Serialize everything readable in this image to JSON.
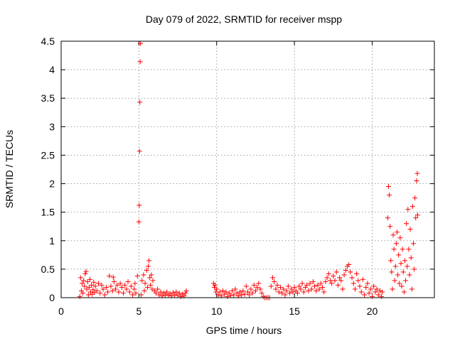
{
  "chart_data": {
    "type": "scatter",
    "title": "Day 079 of 2022, SRMTID for receiver mspp",
    "xlabel": "GPS time / hours",
    "ylabel": "SRMTID / TECUs",
    "xlim": [
      0,
      24
    ],
    "ylim": [
      0,
      4.5
    ],
    "xticks": [
      0,
      5,
      10,
      15,
      20
    ],
    "xtick_labels": [
      "0",
      "5",
      "10",
      "15",
      "20"
    ],
    "yticks": [
      0,
      0.5,
      1,
      1.5,
      2,
      2.5,
      3,
      3.5,
      4,
      4.5
    ],
    "ytick_labels": [
      "0",
      "0.5",
      "1",
      "1.5",
      "2",
      "2.5",
      "3",
      "3.5",
      "4",
      "4.5"
    ],
    "grid": true,
    "marker": "+",
    "color": "#ff0000",
    "series": [
      {
        "name": "SRMTID",
        "points": [
          [
            1.2,
            0.02
          ],
          [
            1.25,
            0.35
          ],
          [
            1.3,
            0.12
          ],
          [
            1.35,
            0.25
          ],
          [
            1.4,
            0.08
          ],
          [
            1.45,
            0.3
          ],
          [
            1.5,
            0.2
          ],
          [
            1.55,
            0.42
          ],
          [
            1.6,
            0.46
          ],
          [
            1.65,
            0.15
          ],
          [
            1.7,
            0.28
          ],
          [
            1.75,
            0.05
          ],
          [
            1.8,
            0.18
          ],
          [
            1.85,
            0.32
          ],
          [
            1.9,
            0.1
          ],
          [
            1.95,
            0.22
          ],
          [
            2.0,
            0.06
          ],
          [
            2.05,
            0.14
          ],
          [
            2.1,
            0.27
          ],
          [
            2.15,
            0.09
          ],
          [
            2.2,
            0.2
          ],
          [
            2.3,
            0.12
          ],
          [
            2.4,
            0.25
          ],
          [
            2.5,
            0.08
          ],
          [
            2.6,
            0.22
          ],
          [
            2.7,
            0.15
          ],
          [
            2.8,
            0.05
          ],
          [
            2.9,
            0.18
          ],
          [
            3.0,
            0.1
          ],
          [
            3.1,
            0.38
          ],
          [
            3.2,
            0.2
          ],
          [
            3.3,
            0.12
          ],
          [
            3.35,
            0.36
          ],
          [
            3.4,
            0.28
          ],
          [
            3.5,
            0.15
          ],
          [
            3.6,
            0.22
          ],
          [
            3.7,
            0.1
          ],
          [
            3.8,
            0.25
          ],
          [
            3.9,
            0.18
          ],
          [
            4.0,
            0.08
          ],
          [
            4.1,
            0.22
          ],
          [
            4.2,
            0.15
          ],
          [
            4.3,
            0.28
          ],
          [
            4.4,
            0.1
          ],
          [
            4.5,
            0.2
          ],
          [
            4.6,
            0.05
          ],
          [
            4.7,
            0.15
          ],
          [
            4.75,
            0.25
          ],
          [
            4.8,
            0.08
          ],
          [
            4.9,
            0.38
          ],
          [
            5.0,
            1.33
          ],
          [
            5.02,
            1.62
          ],
          [
            5.04,
            2.57
          ],
          [
            5.06,
            3.43
          ],
          [
            5.08,
            4.14
          ],
          [
            5.1,
            4.46
          ],
          [
            5.15,
            0.05
          ],
          [
            5.2,
            0.3
          ],
          [
            5.3,
            0.4
          ],
          [
            5.35,
            0.12
          ],
          [
            5.4,
            0.25
          ],
          [
            5.5,
            0.48
          ],
          [
            5.55,
            0.18
          ],
          [
            5.6,
            0.55
          ],
          [
            5.65,
            0.65
          ],
          [
            5.7,
            0.35
          ],
          [
            5.75,
            0.22
          ],
          [
            5.8,
            0.4
          ],
          [
            5.85,
            0.15
          ],
          [
            5.9,
            0.3
          ],
          [
            6.0,
            0.12
          ],
          [
            6.1,
            0.08
          ],
          [
            6.2,
            0.15
          ],
          [
            6.3,
            0.05
          ],
          [
            6.4,
            0.1
          ],
          [
            6.5,
            0.03
          ],
          [
            6.6,
            0.08
          ],
          [
            6.7,
            0.05
          ],
          [
            6.8,
            0.1
          ],
          [
            6.9,
            0.04
          ],
          [
            7.0,
            0.07
          ],
          [
            7.1,
            0.03
          ],
          [
            7.2,
            0.09
          ],
          [
            7.3,
            0.05
          ],
          [
            7.4,
            0.1
          ],
          [
            7.5,
            0.04
          ],
          [
            7.6,
            0.08
          ],
          [
            7.7,
            0.02
          ],
          [
            7.8,
            0.06
          ],
          [
            7.9,
            0.03
          ],
          [
            8.0,
            0.08
          ],
          [
            8.05,
            0.12
          ],
          [
            9.8,
            0.25
          ],
          [
            9.85,
            0.18
          ],
          [
            9.9,
            0.22
          ],
          [
            9.95,
            0.1
          ],
          [
            10.0,
            0.15
          ],
          [
            10.1,
            0.05
          ],
          [
            10.2,
            0.1
          ],
          [
            10.3,
            0.03
          ],
          [
            10.4,
            0.12
          ],
          [
            10.5,
            0.06
          ],
          [
            10.6,
            0.1
          ],
          [
            10.7,
            0.02
          ],
          [
            10.8,
            0.08
          ],
          [
            10.9,
            0.04
          ],
          [
            11.0,
            0.12
          ],
          [
            11.1,
            0.05
          ],
          [
            11.2,
            0.15
          ],
          [
            11.3,
            0.08
          ],
          [
            11.4,
            0.03
          ],
          [
            11.5,
            0.1
          ],
          [
            11.6,
            0.05
          ],
          [
            11.7,
            0.12
          ],
          [
            11.8,
            0.06
          ],
          [
            11.9,
            0.2
          ],
          [
            12.0,
            0.1
          ],
          [
            12.1,
            0.05
          ],
          [
            12.2,
            0.15
          ],
          [
            12.3,
            0.08
          ],
          [
            12.4,
            0.22
          ],
          [
            12.5,
            0.12
          ],
          [
            12.6,
            0.18
          ],
          [
            12.7,
            0.25
          ],
          [
            12.8,
            0.15
          ],
          [
            12.9,
            0.08
          ],
          [
            13.0,
            0.02
          ],
          [
            13.1,
            0.0
          ],
          [
            13.2,
            0.0
          ],
          [
            13.3,
            0.0
          ],
          [
            13.4,
            0.0
          ],
          [
            13.5,
            0.2
          ],
          [
            13.6,
            0.35
          ],
          [
            13.7,
            0.28
          ],
          [
            13.8,
            0.15
          ],
          [
            13.9,
            0.22
          ],
          [
            14.0,
            0.1
          ],
          [
            14.1,
            0.18
          ],
          [
            14.2,
            0.08
          ],
          [
            14.3,
            0.15
          ],
          [
            14.4,
            0.05
          ],
          [
            14.5,
            0.12
          ],
          [
            14.6,
            0.2
          ],
          [
            14.7,
            0.08
          ],
          [
            14.8,
            0.15
          ],
          [
            14.9,
            0.1
          ],
          [
            15.0,
            0.18
          ],
          [
            15.1,
            0.12
          ],
          [
            15.2,
            0.08
          ],
          [
            15.3,
            0.2
          ],
          [
            15.4,
            0.15
          ],
          [
            15.5,
            0.25
          ],
          [
            15.6,
            0.1
          ],
          [
            15.7,
            0.18
          ],
          [
            15.8,
            0.22
          ],
          [
            15.9,
            0.12
          ],
          [
            16.0,
            0.25
          ],
          [
            16.1,
            0.15
          ],
          [
            16.2,
            0.28
          ],
          [
            16.3,
            0.2
          ],
          [
            16.4,
            0.12
          ],
          [
            16.5,
            0.22
          ],
          [
            16.6,
            0.15
          ],
          [
            16.7,
            0.25
          ],
          [
            16.8,
            0.18
          ],
          [
            16.9,
            0.1
          ],
          [
            17.0,
            0.28
          ],
          [
            17.1,
            0.35
          ],
          [
            17.2,
            0.42
          ],
          [
            17.3,
            0.3
          ],
          [
            17.4,
            0.25
          ],
          [
            17.5,
            0.38
          ],
          [
            17.6,
            0.3
          ],
          [
            17.7,
            0.45
          ],
          [
            17.8,
            0.22
          ],
          [
            17.9,
            0.35
          ],
          [
            18.0,
            0.3
          ],
          [
            18.1,
            0.15
          ],
          [
            18.2,
            0.4
          ],
          [
            18.3,
            0.48
          ],
          [
            18.4,
            0.55
          ],
          [
            18.5,
            0.58
          ],
          [
            18.6,
            0.45
          ],
          [
            18.7,
            0.35
          ],
          [
            18.8,
            0.25
          ],
          [
            18.9,
            0.15
          ],
          [
            19.0,
            0.42
          ],
          [
            19.1,
            0.3
          ],
          [
            19.2,
            0.2
          ],
          [
            19.3,
            0.1
          ],
          [
            19.4,
            0.32
          ],
          [
            19.5,
            0.05
          ],
          [
            19.6,
            0.18
          ],
          [
            19.7,
            0.25
          ],
          [
            19.8,
            0.08
          ],
          [
            19.9,
            0.15
          ],
          [
            20.0,
            0.02
          ],
          [
            20.1,
            0.2
          ],
          [
            20.2,
            0.1
          ],
          [
            20.3,
            0.15
          ],
          [
            20.4,
            0.05
          ],
          [
            20.5,
            0.12
          ],
          [
            20.6,
            0.02
          ],
          [
            20.65,
            0.1
          ],
          [
            21.0,
            1.4
          ],
          [
            21.05,
            1.95
          ],
          [
            21.1,
            1.8
          ],
          [
            21.15,
            1.25
          ],
          [
            21.2,
            0.65
          ],
          [
            21.25,
            0.45
          ],
          [
            21.3,
            0.15
          ],
          [
            21.35,
            1.1
          ],
          [
            21.4,
            0.85
          ],
          [
            21.45,
            0.3
          ],
          [
            21.5,
            0.55
          ],
          [
            21.55,
            0.95
          ],
          [
            21.6,
            1.15
          ],
          [
            21.65,
            0.4
          ],
          [
            21.7,
            0.75
          ],
          [
            21.75,
            0.25
          ],
          [
            21.8,
            1.05
          ],
          [
            21.85,
            0.6
          ],
          [
            21.9,
            0.2
          ],
          [
            21.95,
            0.85
          ],
          [
            22.0,
            0.45
          ],
          [
            22.05,
            0.1
          ],
          [
            22.1,
            0.65
          ],
          [
            22.15,
            0.3
          ],
          [
            22.2,
            1.3
          ],
          [
            22.25,
            0.55
          ],
          [
            22.3,
            1.55
          ],
          [
            22.35,
            0.85
          ],
          [
            22.4,
            0.4
          ],
          [
            22.45,
            1.2
          ],
          [
            22.5,
            0.7
          ],
          [
            22.55,
            0.15
          ],
          [
            22.6,
            1.6
          ],
          [
            22.65,
            0.95
          ],
          [
            22.7,
            0.5
          ],
          [
            22.75,
            1.75
          ],
          [
            22.8,
            1.4
          ],
          [
            22.85,
            2.05
          ],
          [
            22.9,
            2.18
          ],
          [
            22.92,
            1.45
          ]
        ]
      }
    ]
  }
}
